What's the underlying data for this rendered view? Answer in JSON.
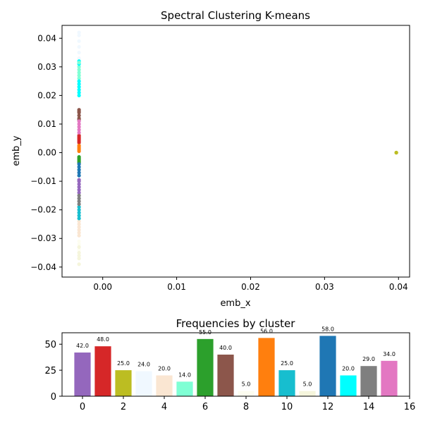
{
  "chart_data": [
    {
      "type": "scatter",
      "title": "Spectral Clustering K-means",
      "xlabel": "emb_x",
      "ylabel": "emb_y",
      "xlim": [
        -0.0055,
        0.0415
      ],
      "ylim": [
        -0.0435,
        0.0445
      ],
      "x_ticks": [
        0.0,
        0.01,
        0.02,
        0.03,
        0.04
      ],
      "x_tick_labels": [
        "0.00",
        "0.01",
        "0.02",
        "0.03",
        "0.04"
      ],
      "y_ticks": [
        -0.04,
        -0.03,
        -0.02,
        -0.01,
        0.0,
        0.01,
        0.02,
        0.03,
        0.04
      ],
      "y_tick_labels": [
        "−0.04",
        "−0.03",
        "−0.02",
        "−0.01",
        "0.00",
        "0.01",
        "0.02",
        "0.03",
        "0.04"
      ],
      "grid": false,
      "clusters": [
        {
          "cluster": 0,
          "color": "#9467bd",
          "x": -0.0032,
          "y": [
            -0.0095,
            -0.01,
            -0.011,
            -0.012,
            -0.013,
            -0.014
          ]
        },
        {
          "cluster": 1,
          "color": "#d62728",
          "x": -0.0032,
          "y": [
            0.0035,
            0.004,
            0.0045,
            0.005,
            0.0055,
            0.006
          ]
        },
        {
          "cluster": 2,
          "color": "#bcbd22",
          "x": 0.0397,
          "y": [
            0.0,
            0.0,
            0.0
          ]
        },
        {
          "cluster": 3,
          "color": "#f0f8ff",
          "x": -0.0032,
          "y": [
            0.033,
            0.035,
            0.037,
            0.039,
            0.041,
            0.042
          ]
        },
        {
          "cluster": 4,
          "color": "#fae6d2",
          "x": -0.0032,
          "y": [
            -0.024,
            -0.025,
            -0.026,
            -0.027,
            -0.028,
            -0.029
          ]
        },
        {
          "cluster": 5,
          "color": "#7fffd4",
          "x": -0.0032,
          "y": [
            0.026,
            0.027,
            0.028,
            0.029,
            0.03
          ]
        },
        {
          "cluster": 6,
          "color": "#2ca02c",
          "x": -0.0032,
          "y": [
            -0.0015,
            -0.002,
            -0.0025,
            -0.003,
            -0.0035
          ]
        },
        {
          "cluster": 7,
          "color": "#8c564b",
          "x": -0.0032,
          "y": [
            0.0115,
            0.012,
            0.013,
            0.014,
            0.0145,
            0.015
          ]
        },
        {
          "cluster": 8,
          "color": "#fdfdf0",
          "x": -0.0032,
          "y": [
            -0.031,
            -0.032,
            -0.034
          ]
        },
        {
          "cluster": 9,
          "color": "#ff7f0e",
          "x": -0.0032,
          "y": [
            0.0005,
            0.001,
            0.0015,
            0.002,
            0.0025
          ]
        },
        {
          "cluster": 10,
          "color": "#17becf",
          "x": -0.0032,
          "y": [
            -0.019,
            -0.02,
            -0.021,
            -0.022,
            -0.023
          ]
        },
        {
          "cluster": 11,
          "color": "#f5f5dc",
          "x": -0.0032,
          "y": [
            -0.033,
            -0.035,
            -0.036,
            -0.037,
            -0.039
          ]
        },
        {
          "cluster": 12,
          "color": "#1f77b4",
          "x": -0.0032,
          "y": [
            -0.004,
            -0.005,
            -0.006,
            -0.007,
            -0.008
          ]
        },
        {
          "cluster": 13,
          "color": "#00ffff",
          "x": -0.0032,
          "y": [
            0.02,
            0.021,
            0.022,
            0.023,
            0.024,
            0.025
          ]
        },
        {
          "cluster": 14,
          "color": "#7f7f7f",
          "x": -0.0032,
          "y": [
            -0.015,
            -0.016,
            -0.017,
            -0.018
          ]
        },
        {
          "cluster": 15,
          "color": "#e377c2",
          "x": -0.0032,
          "y": [
            0.007,
            0.008,
            0.009,
            0.01,
            0.011
          ]
        },
        {
          "cluster": 13,
          "color": "#00ffff",
          "x": -0.0032,
          "y": [
            0.031,
            0.032
          ]
        },
        {
          "cluster": 5,
          "color": "#7fffd4",
          "x": -0.0032,
          "y": [
            0.0315
          ]
        }
      ]
    },
    {
      "type": "bar",
      "title": "Frequencies by cluster",
      "xlabel": "",
      "ylabel": "",
      "xlim": [
        -1.0,
        16.0
      ],
      "ylim": [
        0,
        61
      ],
      "x_ticks": [
        0,
        2,
        4,
        6,
        8,
        10,
        12,
        14,
        16
      ],
      "x_tick_labels": [
        "0",
        "2",
        "4",
        "6",
        "8",
        "10",
        "12",
        "14",
        "16"
      ],
      "y_ticks": [
        0,
        25,
        50
      ],
      "y_tick_labels": [
        "0",
        "25",
        "50"
      ],
      "categories": [
        0,
        1,
        2,
        3,
        4,
        5,
        6,
        7,
        8,
        9,
        10,
        11,
        12,
        13,
        14,
        15
      ],
      "values": [
        42,
        48,
        25,
        24,
        20,
        14,
        55,
        40,
        5,
        56,
        25,
        5,
        58,
        20,
        29,
        34
      ],
      "value_labels": [
        "42.0",
        "48.0",
        "25.0",
        "24.0",
        "20.0",
        "14.0",
        "55.0",
        "40.0",
        "5.0",
        "56.0",
        "25.0",
        "5.0",
        "58.0",
        "20.0",
        "29.0",
        "34.0"
      ],
      "colors": [
        "#9467bd",
        "#d62728",
        "#bcbd22",
        "#f0f8ff",
        "#fae6d2",
        "#7fffd4",
        "#2ca02c",
        "#8c564b",
        "#fdfdf0",
        "#ff7f0e",
        "#17becf",
        "#f5f5dc",
        "#1f77b4",
        "#00ffff",
        "#7f7f7f",
        "#e377c2"
      ]
    }
  ]
}
